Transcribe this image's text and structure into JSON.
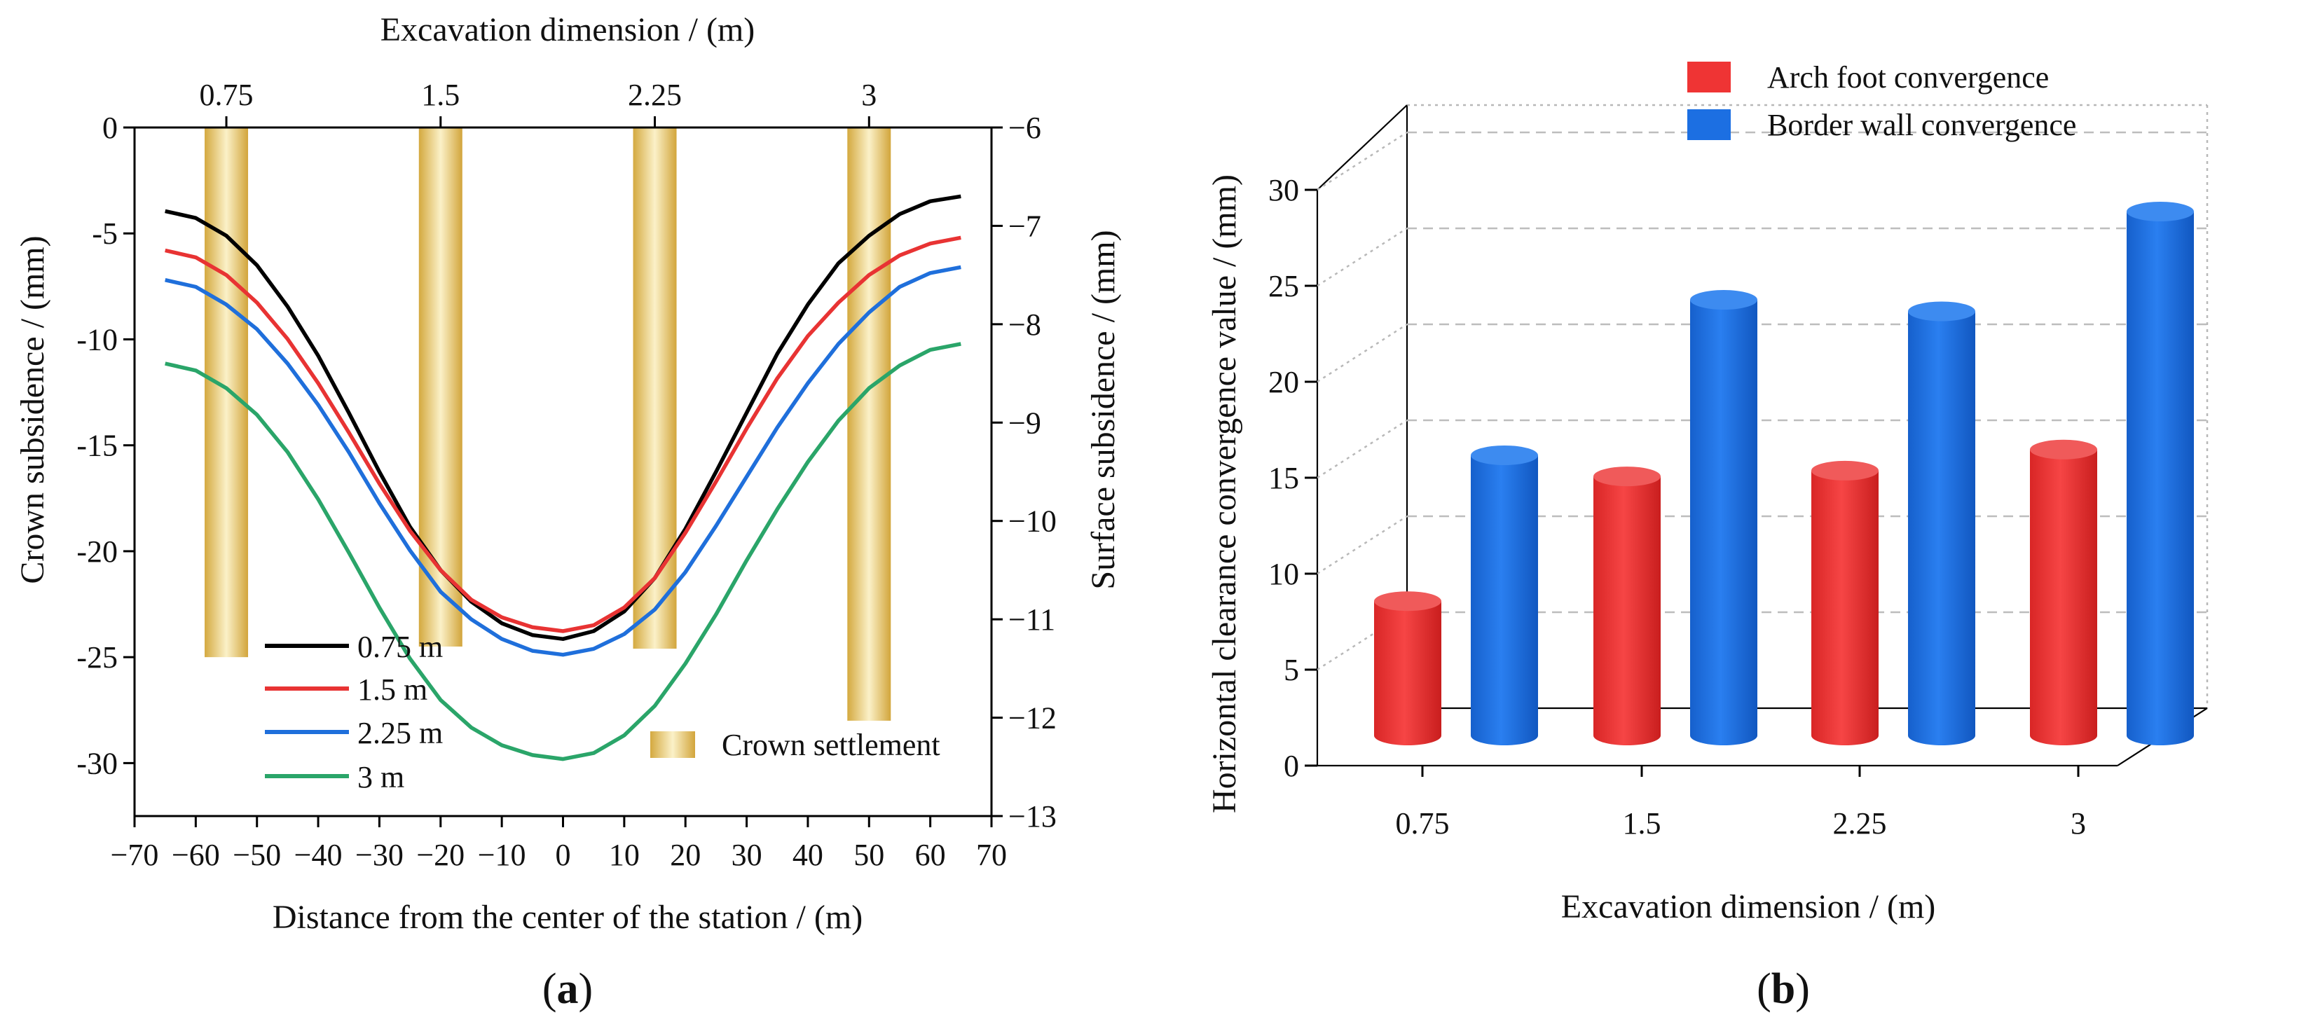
{
  "colors": {
    "black": "#000000",
    "red": "#e83333",
    "blue": "#1f6fdb",
    "green": "#2aa569",
    "gold": "#e3c066",
    "bar_red": "#ef3434",
    "bar_blue": "#1c6fe2"
  },
  "chart_data": [
    {
      "type": "line",
      "panel_label": "(a)",
      "title": "",
      "xlabel": "Distance from the center of the station / (m)",
      "ylabel": "Crown subsidence / (mm)",
      "y2label": "Surface subsidence / (mm)",
      "x2label": "Excavation dimension / (m)",
      "xlim": [
        -70,
        70
      ],
      "ylim": [
        -32.5,
        0
      ],
      "y2lim": [
        -13,
        -6
      ],
      "xticks": [
        -70,
        -60,
        -50,
        -40,
        -30,
        -20,
        -10,
        0,
        10,
        20,
        30,
        40,
        50,
        60,
        70
      ],
      "xtick_labels": [
        "−70",
        "−60",
        "−50",
        "−40",
        "−30",
        "−20",
        "−10",
        "0",
        "10",
        "20",
        "30",
        "40",
        "50",
        "60",
        "70"
      ],
      "yticks": [
        0,
        -5,
        -10,
        -15,
        -20,
        -25,
        -30
      ],
      "ytick_labels": [
        "0",
        "-5",
        "-10",
        "-15",
        "-20",
        "-25",
        "-30"
      ],
      "y2ticks": [
        -6,
        -7,
        -8,
        -9,
        -10,
        -11,
        -12,
        -13
      ],
      "y2tick_labels": [
        "−6",
        "−7",
        "−8",
        "−9",
        "−10",
        "−11",
        "−12",
        "−13"
      ],
      "x2ticks": [
        -55,
        -20,
        15,
        50
      ],
      "x2tick_labels": [
        "0.75",
        "1.5",
        "2.25",
        "3"
      ],
      "x": [
        -65,
        -60,
        -55,
        -50,
        -45,
        -40,
        -35,
        -30,
        -25,
        -20,
        -15,
        -10,
        -5,
        0,
        5,
        10,
        15,
        20,
        25,
        30,
        35,
        40,
        45,
        50,
        55,
        60,
        65
      ],
      "series": [
        {
          "name": "0.75 m",
          "color": "#000000",
          "axis": "y2",
          "values": [
            -6.85,
            -6.92,
            -7.1,
            -7.4,
            -7.82,
            -8.32,
            -8.9,
            -9.5,
            -10.06,
            -10.5,
            -10.82,
            -11.04,
            -11.16,
            -11.2,
            -11.12,
            -10.92,
            -10.58,
            -10.08,
            -9.5,
            -8.9,
            -8.3,
            -7.8,
            -7.38,
            -7.1,
            -6.88,
            -6.75,
            -6.7
          ]
        },
        {
          "name": "1.5 m",
          "color": "#e83333",
          "axis": "y2",
          "values": [
            -7.25,
            -7.32,
            -7.5,
            -7.78,
            -8.15,
            -8.6,
            -9.1,
            -9.62,
            -10.1,
            -10.5,
            -10.8,
            -10.98,
            -11.08,
            -11.12,
            -11.06,
            -10.88,
            -10.58,
            -10.12,
            -9.6,
            -9.06,
            -8.55,
            -8.12,
            -7.78,
            -7.5,
            -7.3,
            -7.18,
            -7.12
          ]
        },
        {
          "name": "2.25 m",
          "color": "#1f6fdb",
          "axis": "y2",
          "values": [
            -7.55,
            -7.62,
            -7.8,
            -8.05,
            -8.4,
            -8.82,
            -9.3,
            -9.82,
            -10.3,
            -10.72,
            -11.0,
            -11.2,
            -11.32,
            -11.36,
            -11.3,
            -11.15,
            -10.9,
            -10.52,
            -10.05,
            -9.55,
            -9.05,
            -8.6,
            -8.2,
            -7.88,
            -7.62,
            -7.48,
            -7.42
          ]
        },
        {
          "name": "3 m",
          "color": "#2aa569",
          "axis": "y2",
          "values": [
            -8.4,
            -8.47,
            -8.65,
            -8.92,
            -9.3,
            -9.78,
            -10.32,
            -10.88,
            -11.4,
            -11.82,
            -12.1,
            -12.28,
            -12.38,
            -12.42,
            -12.36,
            -12.18,
            -11.88,
            -11.45,
            -10.95,
            -10.4,
            -9.88,
            -9.4,
            -8.98,
            -8.65,
            -8.42,
            -8.26,
            -8.2
          ]
        }
      ],
      "bars": {
        "name": "Crown settlement",
        "color": "#e3c066",
        "axis": "y",
        "x": [
          -55,
          -20,
          15,
          50
        ],
        "values": [
          -25.0,
          -24.5,
          -24.6,
          -28.0
        ]
      },
      "legend": {
        "lines": [
          "0.75 m",
          "1.5 m",
          "2.25 m",
          "3 m"
        ],
        "bar": "Crown settlement"
      }
    },
    {
      "type": "bar",
      "panel_label": "(b)",
      "title": "",
      "xlabel": "Excavation dimension / (m)",
      "ylabel": "Horizontal clearance convergence value / (mm)",
      "categories": [
        "0.75",
        "1.5",
        "2.25",
        "3"
      ],
      "ylim": [
        0,
        30
      ],
      "yticks": [
        0,
        5,
        10,
        15,
        20,
        25,
        30
      ],
      "ytick_labels": [
        "0",
        "5",
        "10",
        "15",
        "20",
        "25",
        "30"
      ],
      "series": [
        {
          "name": "Arch foot convergence",
          "color": "#ef3434",
          "values": [
            7.0,
            13.5,
            13.8,
            14.9
          ]
        },
        {
          "name": "Border wall convergence",
          "color": "#1c6fe2",
          "values": [
            14.6,
            22.7,
            22.1,
            27.3
          ]
        }
      ],
      "legend_position": "top"
    }
  ]
}
